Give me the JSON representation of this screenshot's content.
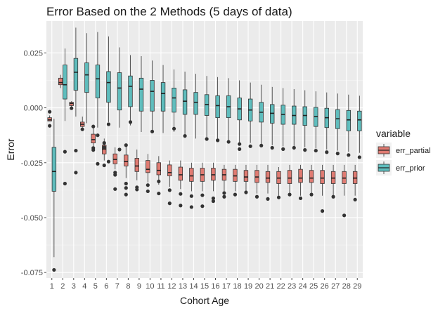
{
  "chart_data": {
    "type": "boxplot",
    "title": "Error Based on the 2 Methods (5 days of data)",
    "xlabel": "Cohort Age",
    "ylabel": "Error",
    "categories": [
      "1",
      "2",
      "3",
      "4",
      "5",
      "6",
      "7",
      "8",
      "9",
      "10",
      "11",
      "12",
      "13",
      "14",
      "15",
      "16",
      "17",
      "18",
      "19",
      "20",
      "21",
      "22",
      "23",
      "24",
      "25",
      "26",
      "27",
      "28",
      "29"
    ],
    "y_ticks": [
      {
        "value": 0.025,
        "label": "0.025"
      },
      {
        "value": 0.0,
        "label": "0.000"
      },
      {
        "value": -0.025,
        "label": "-0.025"
      },
      {
        "value": -0.05,
        "label": "-0.050"
      },
      {
        "value": -0.075,
        "label": "-0.075"
      }
    ],
    "ylim": [
      -0.0775,
      0.0395
    ],
    "background": "#ebebeb",
    "gridlines": true,
    "legend": {
      "title": "variable",
      "position": "right",
      "entries": [
        {
          "name": "err_partial",
          "color": "#e07b72"
        },
        {
          "name": "err_prior",
          "color": "#5fbdbd"
        }
      ]
    },
    "series": [
      {
        "name": "err_partial",
        "color": "#e07b72",
        "boxes": [
          {
            "q1": -0.006,
            "median": -0.0055,
            "q3": -0.0045,
            "lower": -0.006,
            "upper": -0.0035,
            "outliers": [
              -0.0018,
              -0.0082
            ]
          },
          {
            "q1": 0.0105,
            "median": 0.0115,
            "q3": 0.0135,
            "lower": 0.009,
            "upper": 0.015,
            "outliers": []
          },
          {
            "q1": 0.001,
            "median": 0.002,
            "q3": 0.0025,
            "lower": 0.0,
            "upper": 0.003,
            "outliers": [
              -0.0002
            ]
          },
          {
            "q1": -0.0085,
            "median": -0.0075,
            "q3": -0.0065,
            "lower": -0.009,
            "upper": -0.004,
            "outliers": [
              -0.0098
            ]
          },
          {
            "q1": -0.016,
            "median": -0.0145,
            "q3": -0.012,
            "lower": -0.019,
            "upper": -0.009,
            "outliers": [
              -0.0085,
              -0.0183,
              -0.0192
            ]
          },
          {
            "q1": -0.021,
            "median": -0.0188,
            "q3": -0.017,
            "lower": -0.024,
            "upper": -0.014,
            "outliers": [
              -0.0262,
              -0.016,
              -0.018
            ]
          },
          {
            "q1": -0.0255,
            "median": -0.0235,
            "q3": -0.021,
            "lower": -0.028,
            "upper": -0.018,
            "outliers": [
              -0.0295,
              -0.0305,
              -0.037
            ]
          },
          {
            "q1": -0.0265,
            "median": -0.0245,
            "q3": -0.0215,
            "lower": -0.032,
            "upper": -0.017,
            "outliers": [
              -0.0345,
              -0.0365,
              -0.0395,
              -0.017
            ]
          },
          {
            "q1": -0.029,
            "median": -0.0265,
            "q3": -0.023,
            "lower": -0.033,
            "upper": -0.019,
            "outliers": [
              -0.0362,
              -0.0372
            ]
          },
          {
            "q1": -0.0295,
            "median": -0.028,
            "q3": -0.024,
            "lower": -0.034,
            "upper": -0.021,
            "outliers": [
              -0.0352,
              -0.038
            ]
          },
          {
            "q1": -0.0305,
            "median": -0.0285,
            "q3": -0.025,
            "lower": -0.035,
            "upper": -0.022,
            "outliers": [
              -0.0335,
              -0.039
            ]
          },
          {
            "q1": -0.031,
            "median": -0.0295,
            "q3": -0.026,
            "lower": -0.036,
            "upper": -0.024,
            "outliers": [
              -0.0375,
              -0.0435
            ]
          },
          {
            "q1": -0.033,
            "median": -0.0305,
            "q3": -0.027,
            "lower": -0.037,
            "upper": -0.024,
            "outliers": [
              -0.0392,
              -0.0445
            ]
          },
          {
            "q1": -0.0335,
            "median": -0.031,
            "q3": -0.0275,
            "lower": -0.038,
            "upper": -0.025,
            "outliers": [
              -0.0402,
              -0.0452
            ]
          },
          {
            "q1": -0.0335,
            "median": -0.0305,
            "q3": -0.0275,
            "lower": -0.038,
            "upper": -0.025,
            "outliers": [
              -0.0398,
              -0.0448
            ]
          },
          {
            "q1": -0.033,
            "median": -0.0305,
            "q3": -0.0275,
            "lower": -0.038,
            "upper": -0.025,
            "outliers": [
              -0.0412,
              -0.0425
            ]
          },
          {
            "q1": -0.033,
            "median": -0.0305,
            "q3": -0.028,
            "lower": -0.038,
            "upper": -0.026,
            "outliers": [
              -0.0388,
              -0.0405
            ]
          },
          {
            "q1": -0.0335,
            "median": -0.031,
            "q3": -0.028,
            "lower": -0.038,
            "upper": -0.026,
            "outliers": [
              -0.0395
            ]
          },
          {
            "q1": -0.0335,
            "median": -0.0315,
            "q3": -0.0285,
            "lower": -0.039,
            "upper": -0.026,
            "outliers": [
              -0.0385
            ]
          },
          {
            "q1": -0.034,
            "median": -0.0315,
            "q3": -0.0285,
            "lower": -0.039,
            "upper": -0.026,
            "outliers": [
              -0.0405
            ]
          },
          {
            "q1": -0.034,
            "median": -0.032,
            "q3": -0.029,
            "lower": -0.039,
            "upper": -0.026,
            "outliers": [
              -0.0415
            ]
          },
          {
            "q1": -0.0345,
            "median": -0.032,
            "q3": -0.029,
            "lower": -0.04,
            "upper": -0.027,
            "outliers": [
              -0.0408
            ]
          },
          {
            "q1": -0.0345,
            "median": -0.032,
            "q3": -0.0285,
            "lower": -0.04,
            "upper": -0.026,
            "outliers": [
              -0.0395
            ]
          },
          {
            "q1": -0.034,
            "median": -0.032,
            "q3": -0.028,
            "lower": -0.04,
            "upper": -0.026,
            "outliers": [
              -0.0412
            ]
          },
          {
            "q1": -0.034,
            "median": -0.032,
            "q3": -0.0285,
            "lower": -0.04,
            "upper": -0.026,
            "outliers": [
              -0.0395
            ]
          },
          {
            "q1": -0.0345,
            "median": -0.032,
            "q3": -0.0285,
            "lower": -0.04,
            "upper": -0.026,
            "outliers": [
              -0.047
            ]
          },
          {
            "q1": -0.0345,
            "median": -0.032,
            "q3": -0.029,
            "lower": -0.04,
            "upper": -0.026,
            "outliers": [
              -0.0405
            ]
          },
          {
            "q1": -0.0345,
            "median": -0.032,
            "q3": -0.029,
            "lower": -0.04,
            "upper": -0.026,
            "outliers": [
              -0.049
            ]
          },
          {
            "q1": -0.0345,
            "median": -0.032,
            "q3": -0.029,
            "lower": -0.04,
            "upper": -0.026,
            "outliers": [
              -0.0418
            ]
          }
        ]
      },
      {
        "name": "err_prior",
        "color": "#5fbdbd",
        "boxes": [
          {
            "q1": -0.038,
            "median": -0.029,
            "q3": -0.018,
            "lower": -0.068,
            "upper": -0.005,
            "outliers": [
              -0.0738
            ]
          },
          {
            "q1": 0.004,
            "median": 0.0105,
            "q3": 0.0195,
            "lower": -0.006,
            "upper": 0.027,
            "outliers": [
              -0.02,
              -0.0345
            ]
          },
          {
            "q1": 0.008,
            "median": 0.0162,
            "q3": 0.0225,
            "lower": -0.004,
            "upper": 0.0365,
            "outliers": [
              -0.0195,
              -0.0295
            ]
          },
          {
            "q1": 0.007,
            "median": 0.015,
            "q3": 0.0205,
            "lower": -0.007,
            "upper": 0.034,
            "outliers": []
          },
          {
            "q1": 0.0045,
            "median": 0.0132,
            "q3": 0.0195,
            "lower": -0.009,
            "upper": 0.0345,
            "outliers": [
              -0.0255,
              -0.0125
            ]
          },
          {
            "q1": 0.0025,
            "median": 0.0115,
            "q3": 0.0165,
            "lower": -0.0065,
            "upper": 0.0325,
            "outliers": [
              -0.0075,
              -0.0245
            ]
          },
          {
            "q1": -0.001,
            "median": 0.009,
            "q3": 0.016,
            "lower": -0.009,
            "upper": 0.0275,
            "outliers": [
              -0.019
            ]
          },
          {
            "q1": 0.0005,
            "median": 0.0098,
            "q3": 0.0145,
            "lower": -0.008,
            "upper": 0.024,
            "outliers": [
              -0.0065
            ]
          },
          {
            "q1": -0.0015,
            "median": 0.0085,
            "q3": 0.0135,
            "lower": -0.011,
            "upper": 0.0235,
            "outliers": []
          },
          {
            "q1": -0.0015,
            "median": 0.0075,
            "q3": 0.0125,
            "lower": -0.0115,
            "upper": 0.0215,
            "outliers": [
              -0.0108
            ]
          },
          {
            "q1": -0.0015,
            "median": 0.0065,
            "q3": 0.0115,
            "lower": -0.0115,
            "upper": 0.0195,
            "outliers": []
          },
          {
            "q1": -0.002,
            "median": 0.0045,
            "q3": 0.009,
            "lower": -0.011,
            "upper": 0.0175,
            "outliers": [
              -0.0095
            ]
          },
          {
            "q1": -0.003,
            "median": 0.003,
            "q3": 0.0082,
            "lower": -0.013,
            "upper": 0.0165,
            "outliers": [
              -0.0128
            ]
          },
          {
            "q1": -0.003,
            "median": 0.0025,
            "q3": 0.007,
            "lower": -0.014,
            "upper": 0.0155,
            "outliers": []
          },
          {
            "q1": -0.0035,
            "median": 0.0015,
            "q3": 0.006,
            "lower": -0.014,
            "upper": 0.0145,
            "outliers": [
              -0.0142
            ]
          },
          {
            "q1": -0.0045,
            "median": 0.001,
            "q3": 0.0055,
            "lower": -0.0145,
            "upper": 0.014,
            "outliers": [
              -0.0148
            ]
          },
          {
            "q1": -0.0045,
            "median": 0.0005,
            "q3": 0.0055,
            "lower": -0.015,
            "upper": 0.0135,
            "outliers": [
              -0.0155
            ]
          },
          {
            "q1": -0.0055,
            "median": -0.0005,
            "q3": 0.0045,
            "lower": -0.016,
            "upper": 0.0125,
            "outliers": [
              -0.0165,
              -0.0188
            ]
          },
          {
            "q1": -0.006,
            "median": -0.001,
            "q3": 0.004,
            "lower": -0.016,
            "upper": 0.0115,
            "outliers": [
              -0.0175
            ]
          },
          {
            "q1": -0.0065,
            "median": -0.002,
            "q3": 0.0025,
            "lower": -0.0165,
            "upper": 0.0105,
            "outliers": [
              -0.0172
            ]
          },
          {
            "q1": -0.007,
            "median": -0.0025,
            "q3": 0.0015,
            "lower": -0.017,
            "upper": 0.0095,
            "outliers": [
              -0.0182
            ]
          },
          {
            "q1": -0.0075,
            "median": -0.003,
            "q3": 0.0012,
            "lower": -0.0175,
            "upper": 0.009,
            "outliers": [
              -0.0188
            ]
          },
          {
            "q1": -0.0075,
            "median": -0.0035,
            "q3": 0.0008,
            "lower": -0.018,
            "upper": 0.0085,
            "outliers": [
              -0.0182
            ]
          },
          {
            "q1": -0.008,
            "median": -0.0035,
            "q3": 0.0005,
            "lower": -0.018,
            "upper": 0.008,
            "outliers": [
              -0.0192
            ]
          },
          {
            "q1": -0.0085,
            "median": -0.004,
            "q3": 0.0002,
            "lower": -0.0185,
            "upper": 0.0075,
            "outliers": [
              -0.0195
            ]
          },
          {
            "q1": -0.009,
            "median": -0.0045,
            "q3": -0.0002,
            "lower": -0.019,
            "upper": 0.007,
            "outliers": [
              -0.0202
            ]
          },
          {
            "q1": -0.0095,
            "median": -0.005,
            "q3": -0.0008,
            "lower": -0.0195,
            "upper": 0.0065,
            "outliers": [
              -0.0208
            ]
          },
          {
            "q1": -0.0105,
            "median": -0.0055,
            "q3": -0.0012,
            "lower": -0.02,
            "upper": 0.006,
            "outliers": [
              -0.0215
            ]
          },
          {
            "q1": -0.0105,
            "median": -0.0055,
            "q3": -0.0015,
            "lower": -0.0205,
            "upper": 0.0055,
            "outliers": [
              -0.0225
            ]
          }
        ]
      }
    ]
  }
}
